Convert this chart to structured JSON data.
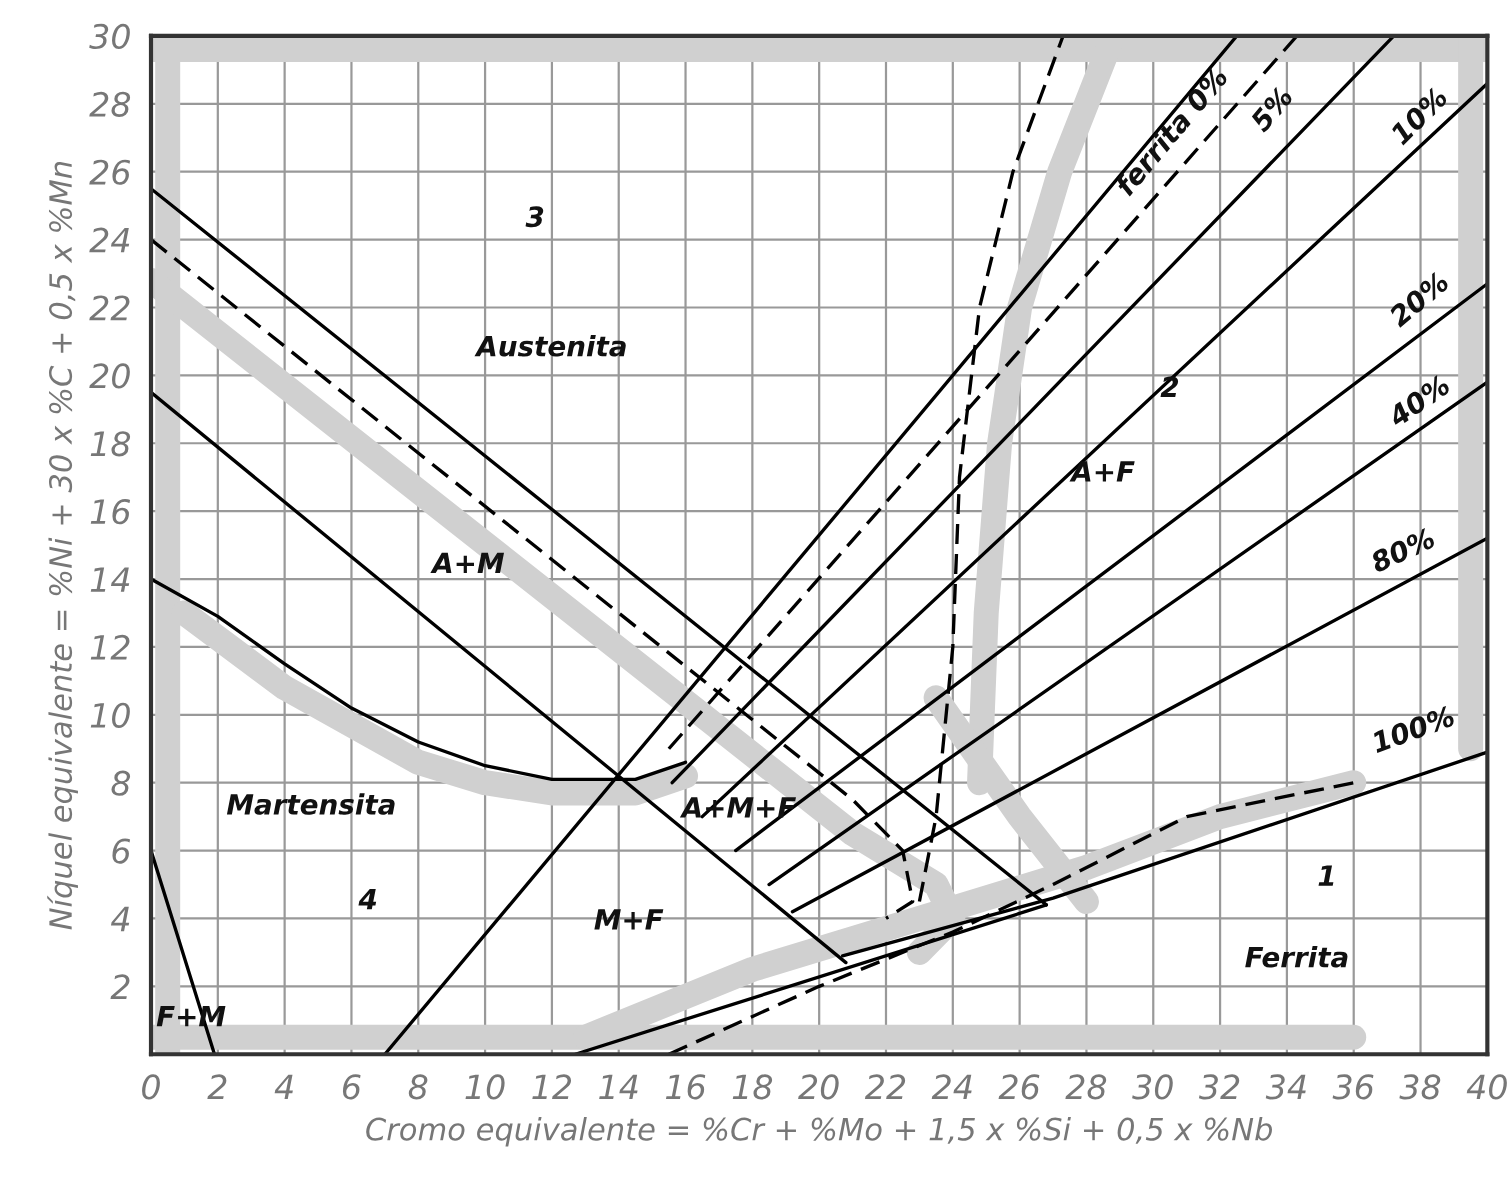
{
  "chart_data": {
    "type": "line",
    "xlabel": "Cromo equivalente = %Cr + %Mo + 1,5 x %Si + 0,5 x %Nb",
    "ylabel": "Níquel equivalente = %Ni + 30 x %C + 0,5 x %Mn",
    "xlim": [
      0,
      40
    ],
    "ylim": [
      0,
      30
    ],
    "xticks": [
      0,
      2,
      4,
      6,
      8,
      10,
      12,
      14,
      16,
      18,
      20,
      22,
      24,
      26,
      28,
      30,
      32,
      34,
      36,
      38,
      40
    ],
    "yticks": [
      {
        "value": 0,
        "label": null
      },
      2,
      4,
      6,
      8,
      10,
      12,
      14,
      16,
      18,
      20,
      22,
      24,
      26,
      28,
      30
    ],
    "grid": true,
    "legend": false,
    "marker": "none",
    "series": [
      {
        "color": "#d0d0d0",
        "line_style": "solid",
        "x": [
          0,
          40
        ],
        "values": [
          29.6,
          29.6
        ]
      },
      {
        "color": "#d0d0d0",
        "line_style": "solid",
        "x": [
          0.5,
          0.5
        ],
        "values": [
          0,
          30
        ]
      },
      {
        "color": "#d0d0d0",
        "line_style": "solid",
        "x": [
          0,
          36
        ],
        "values": [
          0.5,
          0.5
        ]
      },
      {
        "color": "#d0d0d0",
        "line_style": "solid",
        "x": [
          39.5,
          39.5
        ],
        "values": [
          9,
          30
        ]
      },
      {
        "color": "#d0d0d0",
        "line_style": "solid",
        "x": [
          0,
          21,
          23.5,
          24,
          23
        ],
        "values": [
          22.8,
          6.5,
          5,
          4,
          3
        ]
      },
      {
        "color": "#d0d0d0",
        "line_style": "solid",
        "x": [
          1,
          4,
          8,
          10,
          12,
          14.5,
          16
        ],
        "values": [
          13,
          10.8,
          8.6,
          8,
          7.7,
          7.7,
          8.2
        ]
      },
      {
        "color": "#d0d0d0",
        "line_style": "solid",
        "x": [
          24.8,
          25,
          25.4,
          26,
          27.2,
          28.8
        ],
        "values": [
          8,
          13,
          18,
          22,
          26,
          30
        ]
      },
      {
        "color": "#d0d0d0",
        "line_style": "solid",
        "x": [
          13,
          18,
          23,
          28,
          32,
          36
        ],
        "values": [
          0.5,
          2.5,
          4,
          5.5,
          7,
          8
        ]
      },
      {
        "color": "#d0d0d0",
        "line_style": "solid",
        "x": [
          23.5,
          26,
          28
        ],
        "values": [
          10.5,
          7,
          4.5
        ]
      },
      {
        "color": "#000000",
        "line_style": "solid",
        "x": [
          0,
          26.8
        ],
        "values": [
          25.5,
          4.4
        ]
      },
      {
        "color": "#000000",
        "line_style": "solid",
        "x": [
          0,
          20.8
        ],
        "values": [
          19.5,
          2.7
        ]
      },
      {
        "color": "#000000",
        "line_style": "dashed",
        "x": [
          0,
          21,
          22.5,
          22.8,
          22
        ],
        "values": [
          24,
          7.5,
          6,
          4.5,
          4
        ]
      },
      {
        "color": "#000000",
        "line_style": "solid",
        "x": [
          0,
          2,
          4,
          6,
          8,
          10,
          12,
          14.5,
          16
        ],
        "values": [
          14,
          12.9,
          11.5,
          10.2,
          9.2,
          8.5,
          8.1,
          8.1,
          8.6
        ]
      },
      {
        "color": "#000000",
        "line_style": "solid",
        "x": [
          0,
          1.9
        ],
        "values": [
          6,
          0
        ]
      },
      {
        "color": "#000000",
        "line_style": "solid",
        "x": [
          7,
          32.5
        ],
        "values": [
          0,
          30
        ]
      },
      {
        "color": "#000000",
        "line_style": "dashed",
        "x": [
          15.5,
          34.3
        ],
        "values": [
          9,
          30
        ]
      },
      {
        "color": "#000000",
        "line_style": "solid",
        "x": [
          15.6,
          37.2
        ],
        "values": [
          8,
          30
        ]
      },
      {
        "color": "#000000",
        "line_style": "solid",
        "x": [
          16.5,
          40
        ],
        "values": [
          7,
          28.6
        ]
      },
      {
        "color": "#000000",
        "line_style": "solid",
        "x": [
          17.5,
          40
        ],
        "values": [
          6,
          22.7
        ]
      },
      {
        "color": "#000000",
        "line_style": "solid",
        "x": [
          18.5,
          40
        ],
        "values": [
          5,
          19.8
        ]
      },
      {
        "color": "#000000",
        "line_style": "solid",
        "x": [
          19.2,
          40
        ],
        "values": [
          4.2,
          15.2
        ]
      },
      {
        "color": "#000000",
        "line_style": "solid",
        "x": [
          20.7,
          27,
          40
        ],
        "values": [
          2.9,
          4.6,
          8.9
        ]
      },
      {
        "color": "#000000",
        "line_style": "solid",
        "x": [
          12.7,
          26.8
        ],
        "values": [
          0,
          4.4
        ]
      },
      {
        "color": "#000000",
        "line_style": "dashed",
        "x": [
          15.5,
          20,
          24,
          27,
          31,
          36
        ],
        "values": [
          0,
          2,
          3.6,
          5,
          7,
          8
        ]
      },
      {
        "color": "#000000",
        "line_style": "dashed",
        "x": [
          23,
          23.5,
          24,
          24.2,
          24.8,
          25.8,
          27.3
        ],
        "values": [
          4.5,
          7,
          12,
          17,
          22,
          26,
          30
        ]
      }
    ],
    "annotations": [
      "3",
      "Austenita",
      "A+M",
      "Martensita",
      "4",
      "F+M",
      "M+F",
      "A+M+F",
      "2",
      "A+F",
      "1",
      "Ferrita",
      "ferrita 0%",
      "5%",
      "10%",
      "20%",
      "40%",
      "80%",
      "100%"
    ]
  }
}
